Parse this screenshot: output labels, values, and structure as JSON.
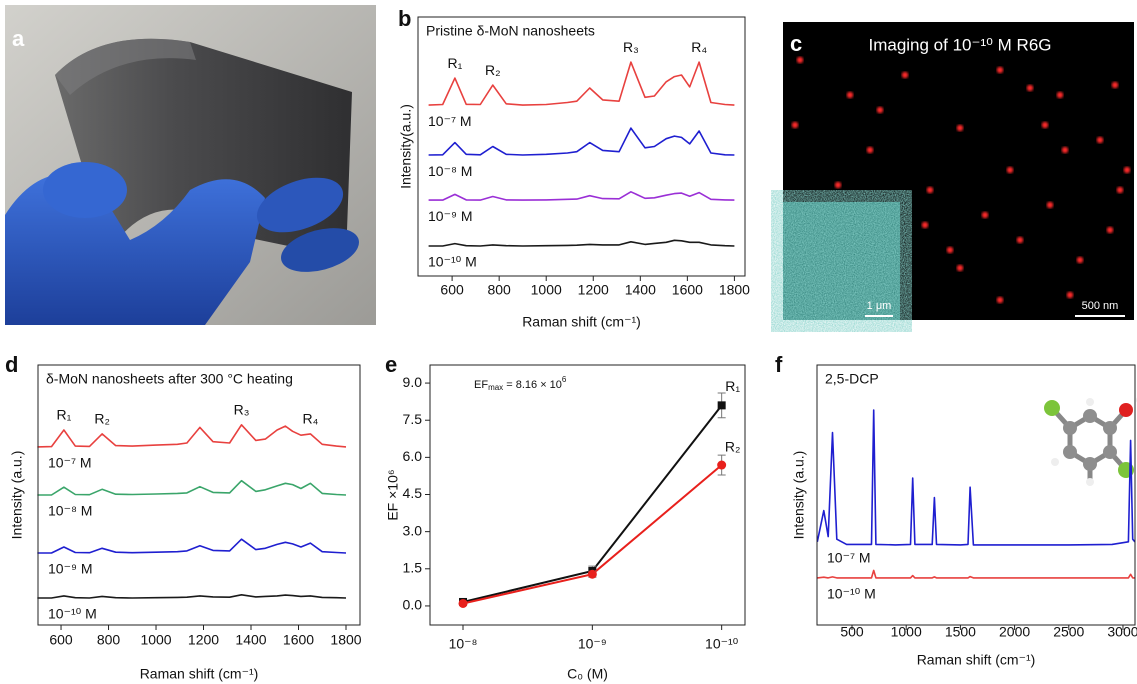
{
  "figure": {
    "panel_a": {
      "label": "a"
    },
    "panel_c": {
      "label": "c",
      "title": "Imaging of 10⁻¹⁰ M R6G",
      "inset_scale": "1 μm",
      "scale": "500 nm"
    }
  },
  "chart_data": [
    {
      "panel": "b",
      "type": "line",
      "title": "Pristine δ-MoN nanosheets",
      "xlabel": "Raman shift (cm⁻¹)",
      "ylabel": "Intensity(a.u.)",
      "xlim": [
        455,
        1845
      ],
      "xticks": [
        600,
        800,
        1000,
        1200,
        1400,
        1600,
        1800
      ],
      "ylim": [
        0,
        10
      ],
      "x": [
        500,
        560,
        612,
        660,
        720,
        773,
        830,
        900,
        1000,
        1090,
        1130,
        1185,
        1240,
        1310,
        1360,
        1420,
        1460,
        1510,
        1545,
        1575,
        1610,
        1650,
        1700,
        1760,
        1800
      ],
      "series": [
        {
          "name": "10⁻⁷ M",
          "color": "#e8413f",
          "values": [
            6.6,
            6.62,
            7.64,
            6.63,
            6.62,
            7.37,
            6.65,
            6.6,
            6.62,
            6.7,
            6.75,
            7.26,
            6.8,
            6.75,
            8.26,
            6.9,
            6.95,
            7.5,
            7.7,
            7.76,
            7.3,
            8.26,
            6.7,
            6.62,
            6.6
          ]
        },
        {
          "name": "10⁻⁸ M",
          "color": "#1f1fd0",
          "values": [
            4.67,
            4.68,
            5.15,
            4.7,
            4.68,
            5.0,
            4.7,
            4.67,
            4.7,
            4.75,
            4.8,
            5.15,
            4.85,
            4.8,
            5.71,
            4.95,
            5.0,
            5.3,
            5.4,
            5.35,
            5.1,
            5.6,
            4.75,
            4.68,
            4.67
          ]
        },
        {
          "name": "10⁻⁹ M",
          "color": "#9a2fd6",
          "values": [
            2.93,
            2.93,
            3.15,
            2.94,
            2.93,
            3.07,
            2.94,
            2.93,
            2.94,
            2.96,
            2.97,
            3.1,
            2.99,
            2.98,
            3.25,
            3.0,
            3.02,
            3.12,
            3.18,
            3.2,
            3.08,
            3.22,
            2.96,
            2.94,
            2.93
          ]
        },
        {
          "name": "10⁻¹⁰ M",
          "color": "#1a1a1a",
          "values": [
            1.16,
            1.16,
            1.25,
            1.17,
            1.16,
            1.2,
            1.17,
            1.16,
            1.17,
            1.18,
            1.19,
            1.22,
            1.2,
            1.2,
            1.32,
            1.22,
            1.26,
            1.3,
            1.38,
            1.36,
            1.3,
            1.3,
            1.2,
            1.17,
            1.16
          ]
        }
      ],
      "peak_labels": [
        {
          "text": "R₁",
          "x": 612
        },
        {
          "text": "R₂",
          "x": 773
        },
        {
          "text": "R₃",
          "x": 1360
        },
        {
          "text": "R₄",
          "x": 1650
        }
      ]
    },
    {
      "panel": "d",
      "type": "line",
      "title": "δ-MoN nanosheets after 300 °C heating",
      "xlabel": "Raman shift (cm⁻¹)",
      "ylabel": "Intensity (a.u.)",
      "xlim": [
        503,
        1859
      ],
      "xticks": [
        600,
        800,
        1000,
        1200,
        1400,
        1600,
        1800
      ],
      "ylim": [
        0,
        10
      ],
      "x": [
        500,
        560,
        612,
        660,
        720,
        773,
        830,
        900,
        1000,
        1090,
        1130,
        1185,
        1240,
        1310,
        1360,
        1420,
        1460,
        1510,
        1545,
        1575,
        1610,
        1650,
        1700,
        1760,
        1800
      ],
      "series": [
        {
          "name": "10⁻⁷ M",
          "color": "#e8413f",
          "values": [
            6.85,
            6.86,
            7.5,
            6.88,
            6.87,
            7.35,
            6.9,
            6.88,
            6.92,
            6.95,
            7.0,
            7.6,
            7.05,
            7.0,
            7.7,
            7.1,
            7.15,
            7.5,
            7.65,
            7.45,
            7.3,
            7.35,
            6.95,
            6.88,
            6.85
          ]
        },
        {
          "name": "10⁻⁸ M",
          "color": "#3aa56a",
          "values": [
            5.0,
            5.0,
            5.3,
            5.02,
            5.01,
            5.22,
            5.03,
            5.02,
            5.04,
            5.06,
            5.08,
            5.32,
            5.1,
            5.08,
            5.55,
            5.14,
            5.2,
            5.35,
            5.45,
            5.4,
            5.25,
            5.45,
            5.06,
            5.02,
            5.0
          ]
        },
        {
          "name": "10⁻⁹ M",
          "color": "#1f1fd0",
          "values": [
            2.77,
            2.77,
            3.0,
            2.79,
            2.78,
            2.95,
            2.8,
            2.78,
            2.8,
            2.82,
            2.85,
            3.05,
            2.87,
            2.85,
            3.3,
            2.9,
            2.95,
            3.1,
            3.18,
            3.12,
            3.0,
            3.15,
            2.82,
            2.79,
            2.77
          ]
        },
        {
          "name": "10⁻¹⁰ M",
          "color": "#1a1a1a",
          "values": [
            1.04,
            1.04,
            1.12,
            1.05,
            1.04,
            1.1,
            1.05,
            1.04,
            1.05,
            1.06,
            1.07,
            1.12,
            1.08,
            1.07,
            1.16,
            1.08,
            1.1,
            1.12,
            1.15,
            1.13,
            1.1,
            1.12,
            1.06,
            1.05,
            1.04
          ]
        }
      ],
      "peak_labels": [
        {
          "text": "R₁",
          "x": 612
        },
        {
          "text": "R₂",
          "x": 773
        },
        {
          "text": "R₃",
          "x": 1360
        },
        {
          "text": "R₄",
          "x": 1650
        }
      ]
    },
    {
      "panel": "e",
      "type": "errorline",
      "xlabel": "C₀ (M)",
      "ylabel": "EF ×10⁶",
      "xscale": "log",
      "annotation": {
        "main": "EF",
        "sub": "max",
        "rest": " = 8.16 × 10",
        "sup": "6"
      },
      "x": [
        1e-08,
        1e-09,
        1e-10
      ],
      "xlim": [
        1.8e-08,
        6.6e-11
      ],
      "xticks": [
        {
          "value": 1e-08,
          "label": "10⁻⁸"
        },
        {
          "value": 1e-09,
          "label": "10⁻⁹"
        },
        {
          "value": 1e-10,
          "label": "10⁻¹⁰"
        }
      ],
      "ylim": [
        -0.77,
        9.73
      ],
      "yticks": [
        {
          "value": 0,
          "label": "0.0"
        },
        1.5,
        {
          "value": 3,
          "label": "3.0"
        },
        4.5,
        {
          "value": 6,
          "label": "6.0"
        },
        7.5,
        {
          "value": 9,
          "label": "9.0"
        }
      ],
      "series": [
        {
          "name": "R₁",
          "color": "#111111",
          "marker": "square",
          "values": [
            0.16,
            1.41,
            8.1
          ],
          "errors": [
            0.12,
            0.2,
            0.5
          ]
        },
        {
          "name": "R₂",
          "color": "#e8201c",
          "marker": "circle",
          "values": [
            0.1,
            1.28,
            5.69
          ],
          "errors": [
            0.08,
            0.12,
            0.4
          ]
        }
      ]
    },
    {
      "panel": "f",
      "type": "line",
      "title": "2,5-DCP",
      "xlabel": "Raman shift (cm⁻¹)",
      "ylabel": "Intensity (a.u.)",
      "xlim": [
        177,
        3111
      ],
      "xticks": [
        500,
        1000,
        1500,
        2000,
        2500,
        3000
      ],
      "ylim": [
        0,
        10
      ],
      "x": [
        180,
        240,
        280,
        320,
        360,
        450,
        600,
        680,
        700,
        720,
        900,
        1040,
        1060,
        1080,
        1240,
        1260,
        1280,
        1500,
        1570,
        1590,
        1620,
        2000,
        2500,
        2900,
        3050,
        3070,
        3090,
        3110
      ],
      "series": [
        {
          "name": "10⁻⁷ M",
          "color": "#1f1fd0",
          "values": [
            3.2,
            4.4,
            3.4,
            7.4,
            3.3,
            3.1,
            3.1,
            3.1,
            8.27,
            3.1,
            3.08,
            3.1,
            5.65,
            3.1,
            3.1,
            4.9,
            3.1,
            3.08,
            3.1,
            5.3,
            3.08,
            3.08,
            3.08,
            3.1,
            3.2,
            7.1,
            3.3,
            3.2
          ]
        },
        {
          "name": "10⁻¹⁰ M",
          "color": "#e8413f",
          "values": [
            1.81,
            1.84,
            1.81,
            1.85,
            1.81,
            1.81,
            1.81,
            1.81,
            2.1,
            1.81,
            1.81,
            1.81,
            1.9,
            1.81,
            1.81,
            1.85,
            1.81,
            1.81,
            1.81,
            1.86,
            1.81,
            1.81,
            1.81,
            1.81,
            1.81,
            1.95,
            1.81,
            1.81
          ]
        }
      ]
    }
  ]
}
